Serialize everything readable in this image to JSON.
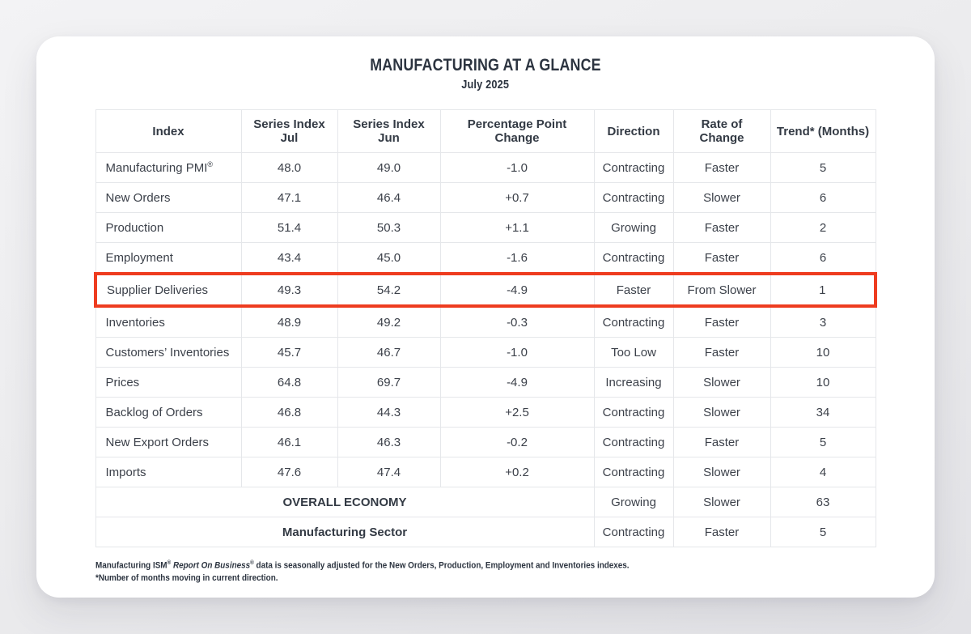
{
  "title": "MANUFACTURING AT A GLANCE",
  "subtitle": "July 2025",
  "colors": {
    "highlight_border": "#ee3c1f",
    "card_background": "#ffffff",
    "page_background": "#ececee",
    "text_dark": "#2c3440",
    "table_text": "#3c414a",
    "table_border": "#e5e7ea"
  },
  "table": {
    "headers": [
      "Index",
      "Series Index Jul",
      "Series Index Jun",
      "Percentage Point Change",
      "Direction",
      "Rate of Change",
      "Trend* (Months)"
    ],
    "rows": [
      {
        "index": "Manufacturing PMI",
        "index_sup": "®",
        "jul": "48.0",
        "jun": "49.0",
        "change": "-1.0",
        "direction": "Contracting",
        "rate": "Faster",
        "trend": "5",
        "highlight": false
      },
      {
        "index": "New Orders",
        "index_sup": "",
        "jul": "47.1",
        "jun": "46.4",
        "change": "+0.7",
        "direction": "Contracting",
        "rate": "Slower",
        "trend": "6",
        "highlight": false
      },
      {
        "index": "Production",
        "index_sup": "",
        "jul": "51.4",
        "jun": "50.3",
        "change": "+1.1",
        "direction": "Growing",
        "rate": "Faster",
        "trend": "2",
        "highlight": false
      },
      {
        "index": "Employment",
        "index_sup": "",
        "jul": "43.4",
        "jun": "45.0",
        "change": "-1.6",
        "direction": "Contracting",
        "rate": "Faster",
        "trend": "6",
        "highlight": false
      },
      {
        "index": "Supplier Deliveries",
        "index_sup": "",
        "jul": "49.3",
        "jun": "54.2",
        "change": "-4.9",
        "direction": "Faster",
        "rate": "From Slower",
        "trend": "1",
        "highlight": true
      },
      {
        "index": "Inventories",
        "index_sup": "",
        "jul": "48.9",
        "jun": "49.2",
        "change": "-0.3",
        "direction": "Contracting",
        "rate": "Faster",
        "trend": "3",
        "highlight": false
      },
      {
        "index": "Customers’ Inventories",
        "index_sup": "",
        "jul": "45.7",
        "jun": "46.7",
        "change": "-1.0",
        "direction": "Too Low",
        "rate": "Faster",
        "trend": "10",
        "highlight": false
      },
      {
        "index": "Prices",
        "index_sup": "",
        "jul": "64.8",
        "jun": "69.7",
        "change": "-4.9",
        "direction": "Increasing",
        "rate": "Slower",
        "trend": "10",
        "highlight": false
      },
      {
        "index": "Backlog of Orders",
        "index_sup": "",
        "jul": "46.8",
        "jun": "44.3",
        "change": "+2.5",
        "direction": "Contracting",
        "rate": "Slower",
        "trend": "34",
        "highlight": false
      },
      {
        "index": "New Export Orders",
        "index_sup": "",
        "jul": "46.1",
        "jun": "46.3",
        "change": "-0.2",
        "direction": "Contracting",
        "rate": "Faster",
        "trend": "5",
        "highlight": false
      },
      {
        "index": "Imports",
        "index_sup": "",
        "jul": "47.6",
        "jun": "47.4",
        "change": "+0.2",
        "direction": "Contracting",
        "rate": "Slower",
        "trend": "4",
        "highlight": false
      }
    ],
    "summary_rows": [
      {
        "label": "OVERALL ECONOMY",
        "direction": "Growing",
        "rate": "Slower",
        "trend": "63"
      },
      {
        "label": "Manufacturing Sector",
        "direction": "Contracting",
        "rate": "Faster",
        "trend": "5"
      }
    ]
  },
  "footnotes": {
    "line1_segments": [
      {
        "t": "Manufacturing ISM",
        "s": "normal"
      },
      {
        "t": "®",
        "s": "sup"
      },
      {
        "t": " ",
        "s": "normal"
      },
      {
        "t": "Report On Business",
        "s": "italic"
      },
      {
        "t": "®",
        "s": "sup"
      },
      {
        "t": " data is seasonally adjusted for the New Orders, Production, Employment and Inventories indexes.",
        "s": "normal"
      }
    ],
    "line2": "*Number of months moving in current direction."
  }
}
